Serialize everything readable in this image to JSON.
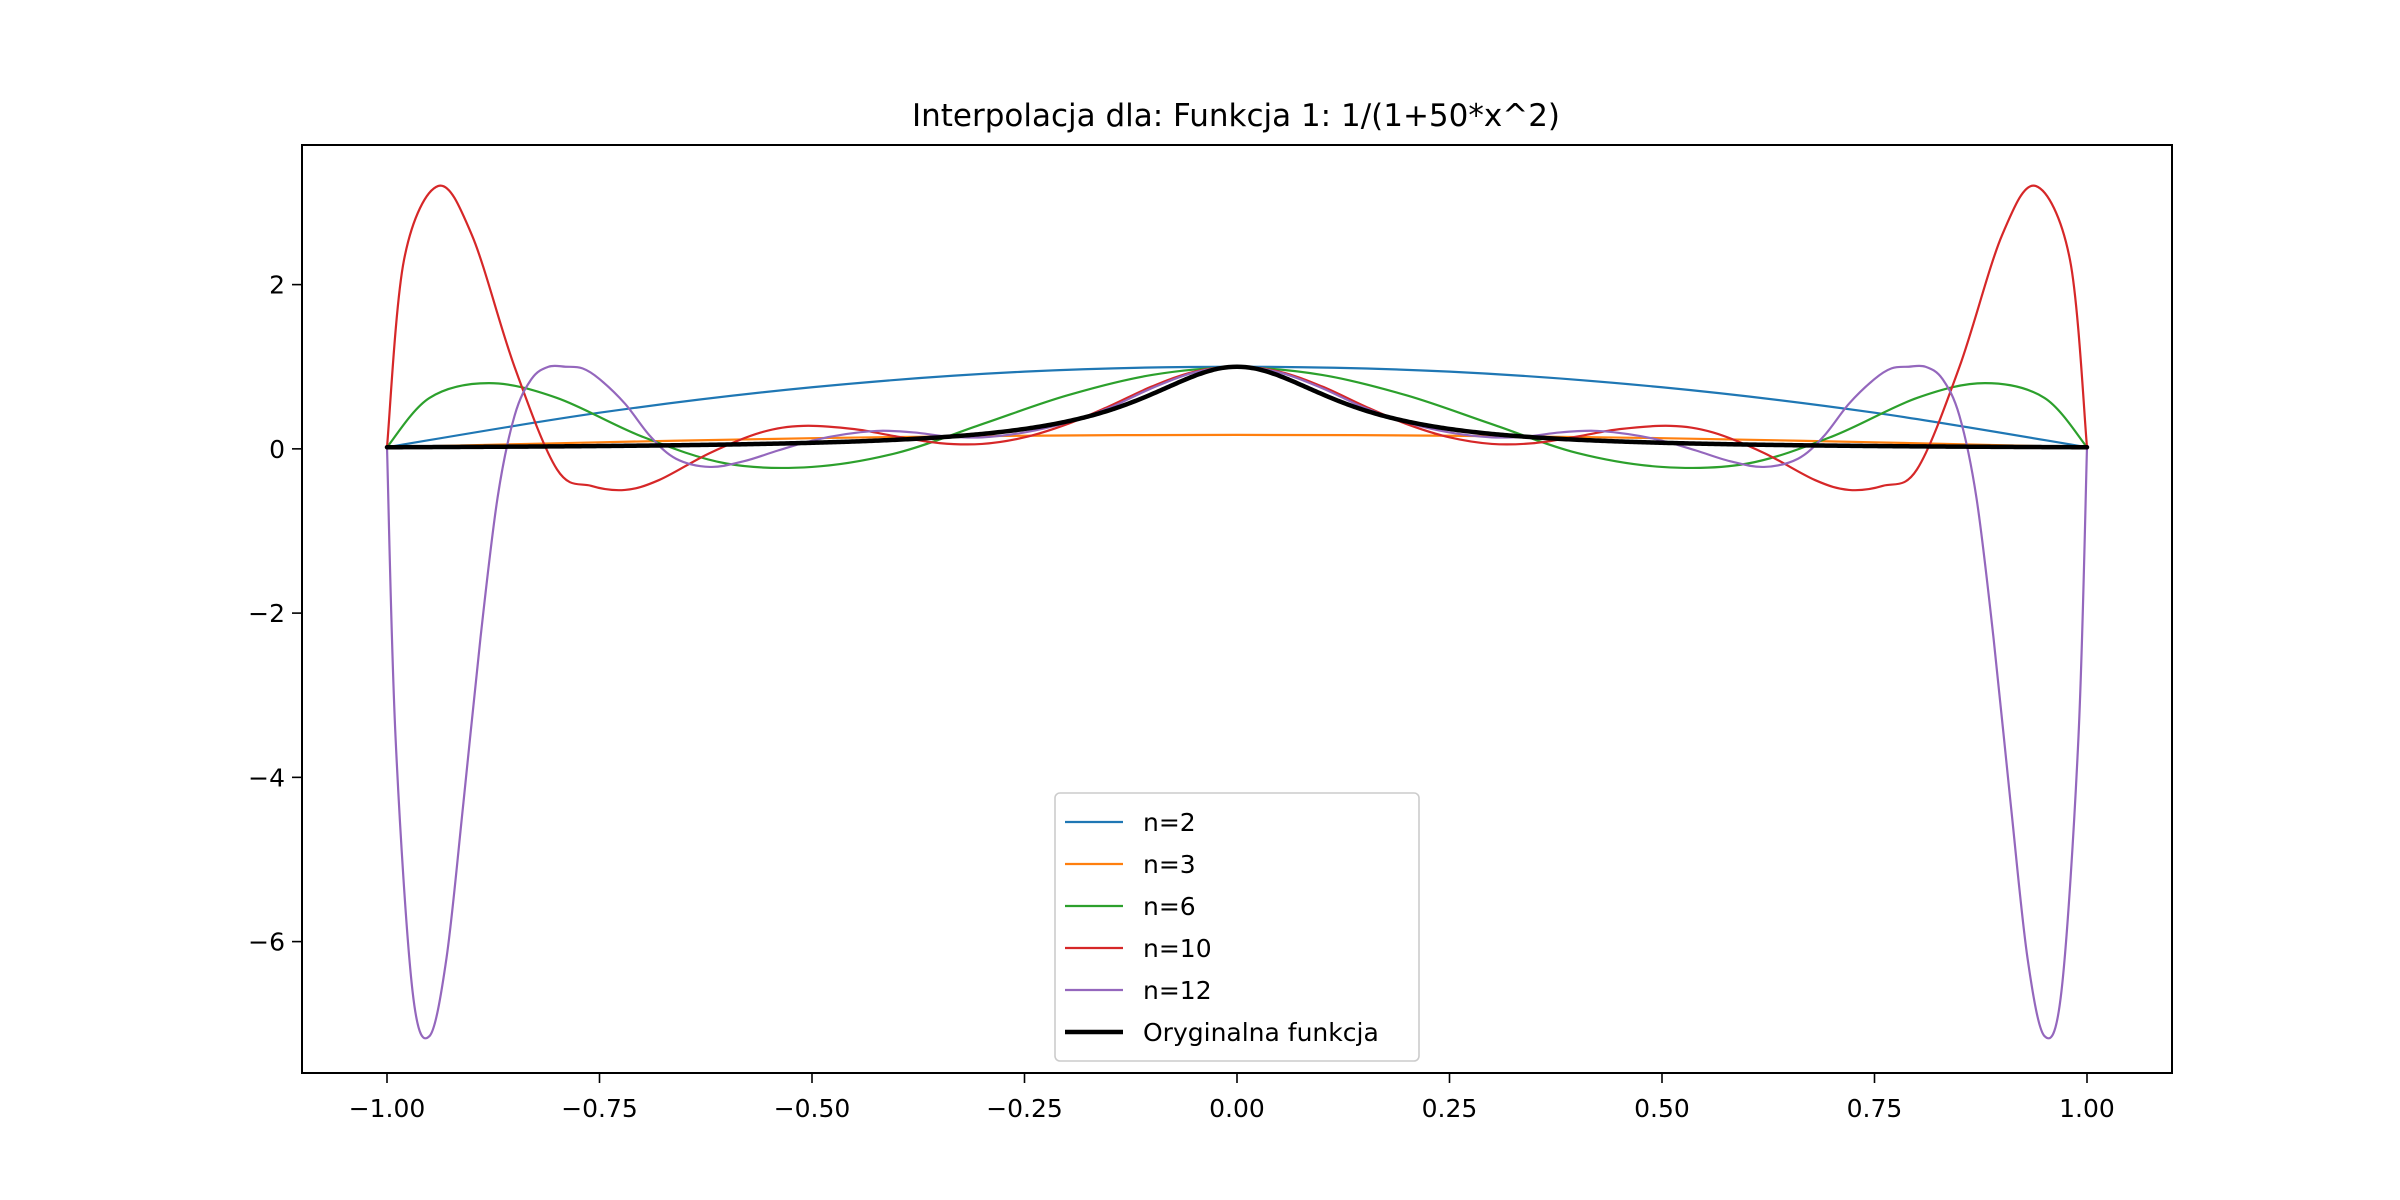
{
  "chart_data": {
    "type": "line",
    "title": "Interpolacja dla: Funkcja 1: 1/(1+50*x^2)",
    "xlabel": "",
    "ylabel": "",
    "xlim": [
      -1.1,
      1.1
    ],
    "ylim": [
      -7.6,
      3.7
    ],
    "xticks": [
      -1.0,
      -0.75,
      -0.5,
      -0.25,
      0.0,
      0.25,
      0.5,
      0.75,
      1.0
    ],
    "xtick_labels": [
      "−1.00",
      "−0.75",
      "−0.50",
      "−0.25",
      "0.00",
      "0.25",
      "0.50",
      "0.75",
      "1.00"
    ],
    "yticks": [
      -6,
      -4,
      -2,
      0,
      2
    ],
    "ytick_labels": [
      "−6",
      "−4",
      "−2",
      "0",
      "2"
    ],
    "grid": false,
    "legend_position": "lower center",
    "series": [
      {
        "name": "n=2",
        "color": "#1f77b4",
        "linewidth": 2.2,
        "x": [
          -1.0,
          -0.75,
          -0.5,
          -0.25,
          0.0,
          0.25,
          0.5,
          0.75,
          1.0
        ],
        "y": [
          0.02,
          0.44,
          0.75,
          0.94,
          1.0,
          0.94,
          0.75,
          0.44,
          0.02
        ]
      },
      {
        "name": "n=3",
        "color": "#ff7f0e",
        "linewidth": 2.2,
        "x": [
          -1.0,
          -0.75,
          -0.5,
          -0.25,
          0.0,
          0.25,
          0.5,
          0.75,
          1.0
        ],
        "y": [
          0.02,
          0.08,
          0.13,
          0.16,
          0.17,
          0.16,
          0.13,
          0.08,
          0.02
        ]
      },
      {
        "name": "n=6",
        "color": "#2ca02c",
        "linewidth": 2.2,
        "x": [
          -1.0,
          -0.95,
          -0.88,
          -0.8,
          -0.7,
          -0.6,
          -0.5,
          -0.4,
          -0.3,
          -0.2,
          -0.1,
          0.0,
          0.1,
          0.2,
          0.3,
          0.4,
          0.5,
          0.6,
          0.7,
          0.8,
          0.88,
          0.95,
          1.0
        ],
        "y": [
          0.02,
          0.62,
          0.8,
          0.62,
          0.15,
          -0.18,
          -0.22,
          -0.05,
          0.3,
          0.65,
          0.9,
          0.99,
          0.9,
          0.65,
          0.3,
          -0.05,
          -0.22,
          -0.18,
          0.15,
          0.62,
          0.8,
          0.62,
          0.02
        ]
      },
      {
        "name": "n=10",
        "color": "#d62728",
        "linewidth": 2.2,
        "x": [
          -1.0,
          -0.98,
          -0.94,
          -0.9,
          -0.85,
          -0.8,
          -0.76,
          -0.72,
          -0.68,
          -0.62,
          -0.56,
          -0.51,
          -0.45,
          -0.4,
          -0.35,
          -0.3,
          -0.25,
          -0.2,
          -0.15,
          -0.1,
          -0.05,
          0.0,
          0.05,
          0.1,
          0.15,
          0.2,
          0.25,
          0.3,
          0.35,
          0.4,
          0.45,
          0.51,
          0.56,
          0.62,
          0.68,
          0.72,
          0.76,
          0.8,
          0.85,
          0.9,
          0.94,
          0.98,
          1.0
        ],
        "y": [
          0.02,
          2.3,
          3.2,
          2.6,
          1.0,
          -0.25,
          -0.45,
          -0.5,
          -0.38,
          -0.05,
          0.2,
          0.28,
          0.24,
          0.15,
          0.07,
          0.06,
          0.14,
          0.3,
          0.52,
          0.76,
          0.94,
          1.0,
          0.94,
          0.76,
          0.52,
          0.3,
          0.14,
          0.06,
          0.07,
          0.15,
          0.24,
          0.28,
          0.2,
          -0.05,
          -0.38,
          -0.5,
          -0.45,
          -0.25,
          1.0,
          2.6,
          3.2,
          2.3,
          0.02
        ]
      },
      {
        "name": "n=12",
        "color": "#9467bd",
        "linewidth": 2.2,
        "x": [
          -1.0,
          -0.99,
          -0.97,
          -0.95,
          -0.93,
          -0.91,
          -0.89,
          -0.87,
          -0.85,
          -0.83,
          -0.81,
          -0.79,
          -0.77,
          -0.75,
          -0.72,
          -0.69,
          -0.66,
          -0.62,
          -0.58,
          -0.54,
          -0.5,
          -0.46,
          -0.42,
          -0.38,
          -0.34,
          -0.3,
          -0.25,
          -0.2,
          -0.15,
          -0.1,
          -0.05,
          0.0,
          0.05,
          0.1,
          0.15,
          0.2,
          0.25,
          0.3,
          0.34,
          0.38,
          0.42,
          0.46,
          0.5,
          0.54,
          0.58,
          0.62,
          0.66,
          0.69,
          0.72,
          0.75,
          0.77,
          0.79,
          0.81,
          0.83,
          0.85,
          0.87,
          0.89,
          0.91,
          0.93,
          0.95,
          0.97,
          0.99,
          1.0
        ],
        "y": [
          0.02,
          -3.5,
          -6.6,
          -7.15,
          -6.2,
          -4.3,
          -2.3,
          -0.6,
          0.4,
          0.85,
          1.0,
          1.0,
          0.98,
          0.85,
          0.55,
          0.15,
          -0.12,
          -0.22,
          -0.15,
          -0.02,
          0.1,
          0.18,
          0.22,
          0.2,
          0.15,
          0.14,
          0.2,
          0.32,
          0.5,
          0.74,
          0.93,
          1.0,
          0.93,
          0.74,
          0.5,
          0.32,
          0.2,
          0.14,
          0.15,
          0.2,
          0.22,
          0.18,
          0.1,
          -0.02,
          -0.15,
          -0.22,
          -0.12,
          0.15,
          0.55,
          0.85,
          0.98,
          1.0,
          1.0,
          0.85,
          0.4,
          -0.6,
          -2.3,
          -4.3,
          -6.2,
          -7.15,
          -6.6,
          -3.5,
          0.02
        ]
      },
      {
        "name": "Oryginalna funkcja",
        "color": "#000000",
        "linewidth": 4.5,
        "function": "1/(1+50*x^2)",
        "x_range": [
          -1.0,
          1.0
        ]
      }
    ]
  }
}
